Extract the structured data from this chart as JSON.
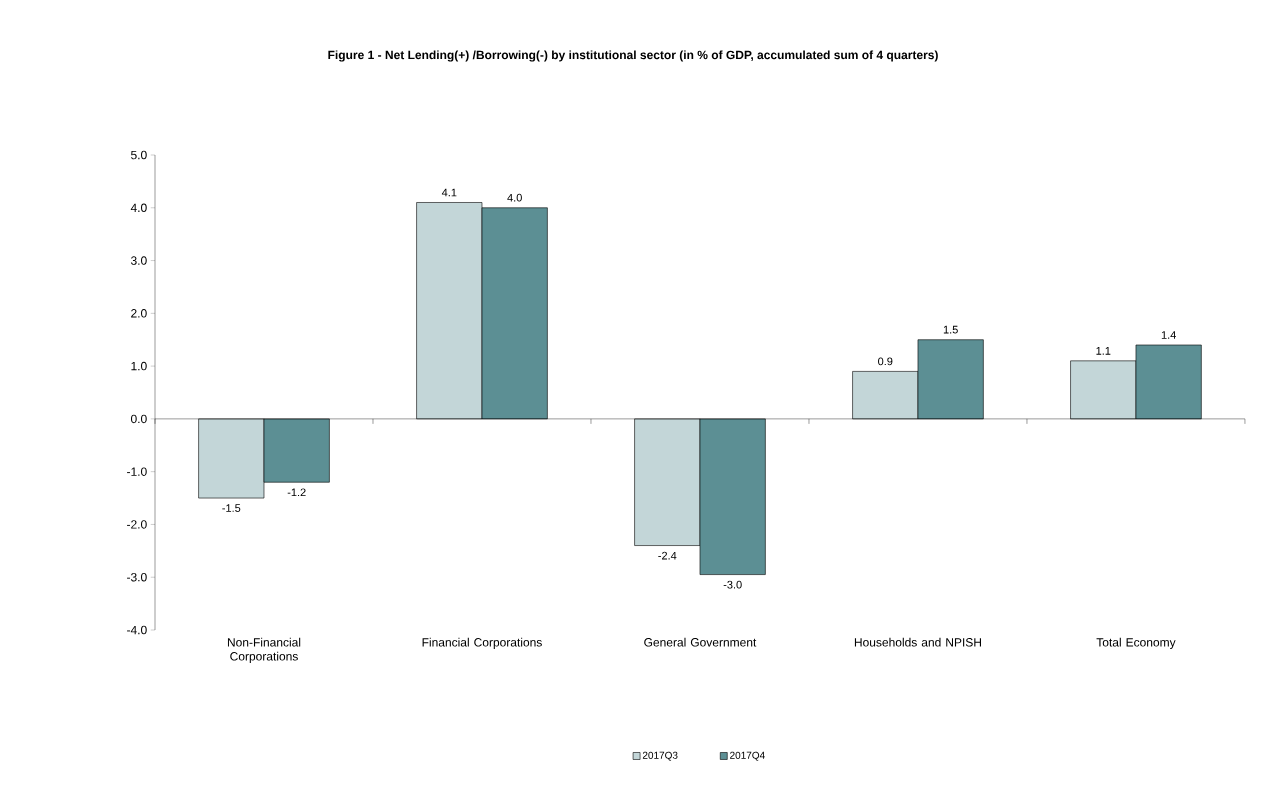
{
  "chart_data": {
    "type": "bar",
    "title": "Figure 1 - Net Lending(+) /Borrowing(-) by institutional sector  (in % of GDP, accumulated sum of 4 quarters)",
    "categories": [
      "Non-Financial Corporations",
      "Financial Corporations",
      "General Government",
      "Households and NPISH",
      "Total Economy"
    ],
    "series": [
      {
        "name": "2017Q3",
        "color": "#c3d6d8",
        "values": [
          -1.5,
          4.1,
          -2.4,
          0.9,
          1.1
        ],
        "value_labels": [
          "-1.5",
          "4.1",
          "-2.4",
          "0.9",
          "1.1"
        ]
      },
      {
        "name": "2017Q4",
        "color": "#5c8f94",
        "values": [
          -1.2,
          4.0,
          -2.95,
          1.5,
          1.4
        ],
        "value_labels": [
          "-1.2",
          "4.0",
          "-3.0",
          "1.5",
          "1.4"
        ]
      }
    ],
    "ylim": [
      -4,
      5
    ],
    "yticks": [
      {
        "value": -4,
        "label": "-4.0"
      },
      {
        "value": -3,
        "label": "-3.0"
      },
      {
        "value": -2,
        "label": "-2.0"
      },
      {
        "value": -1,
        "label": "-1.0"
      },
      {
        "value": 0,
        "label": "0.0"
      },
      {
        "value": 1,
        "label": "1.0"
      },
      {
        "value": 2,
        "label": "2.0"
      },
      {
        "value": 3,
        "label": "3.0"
      },
      {
        "value": 4,
        "label": "4.0"
      },
      {
        "value": 5,
        "label": "5.0"
      }
    ],
    "legend": "bottom"
  }
}
